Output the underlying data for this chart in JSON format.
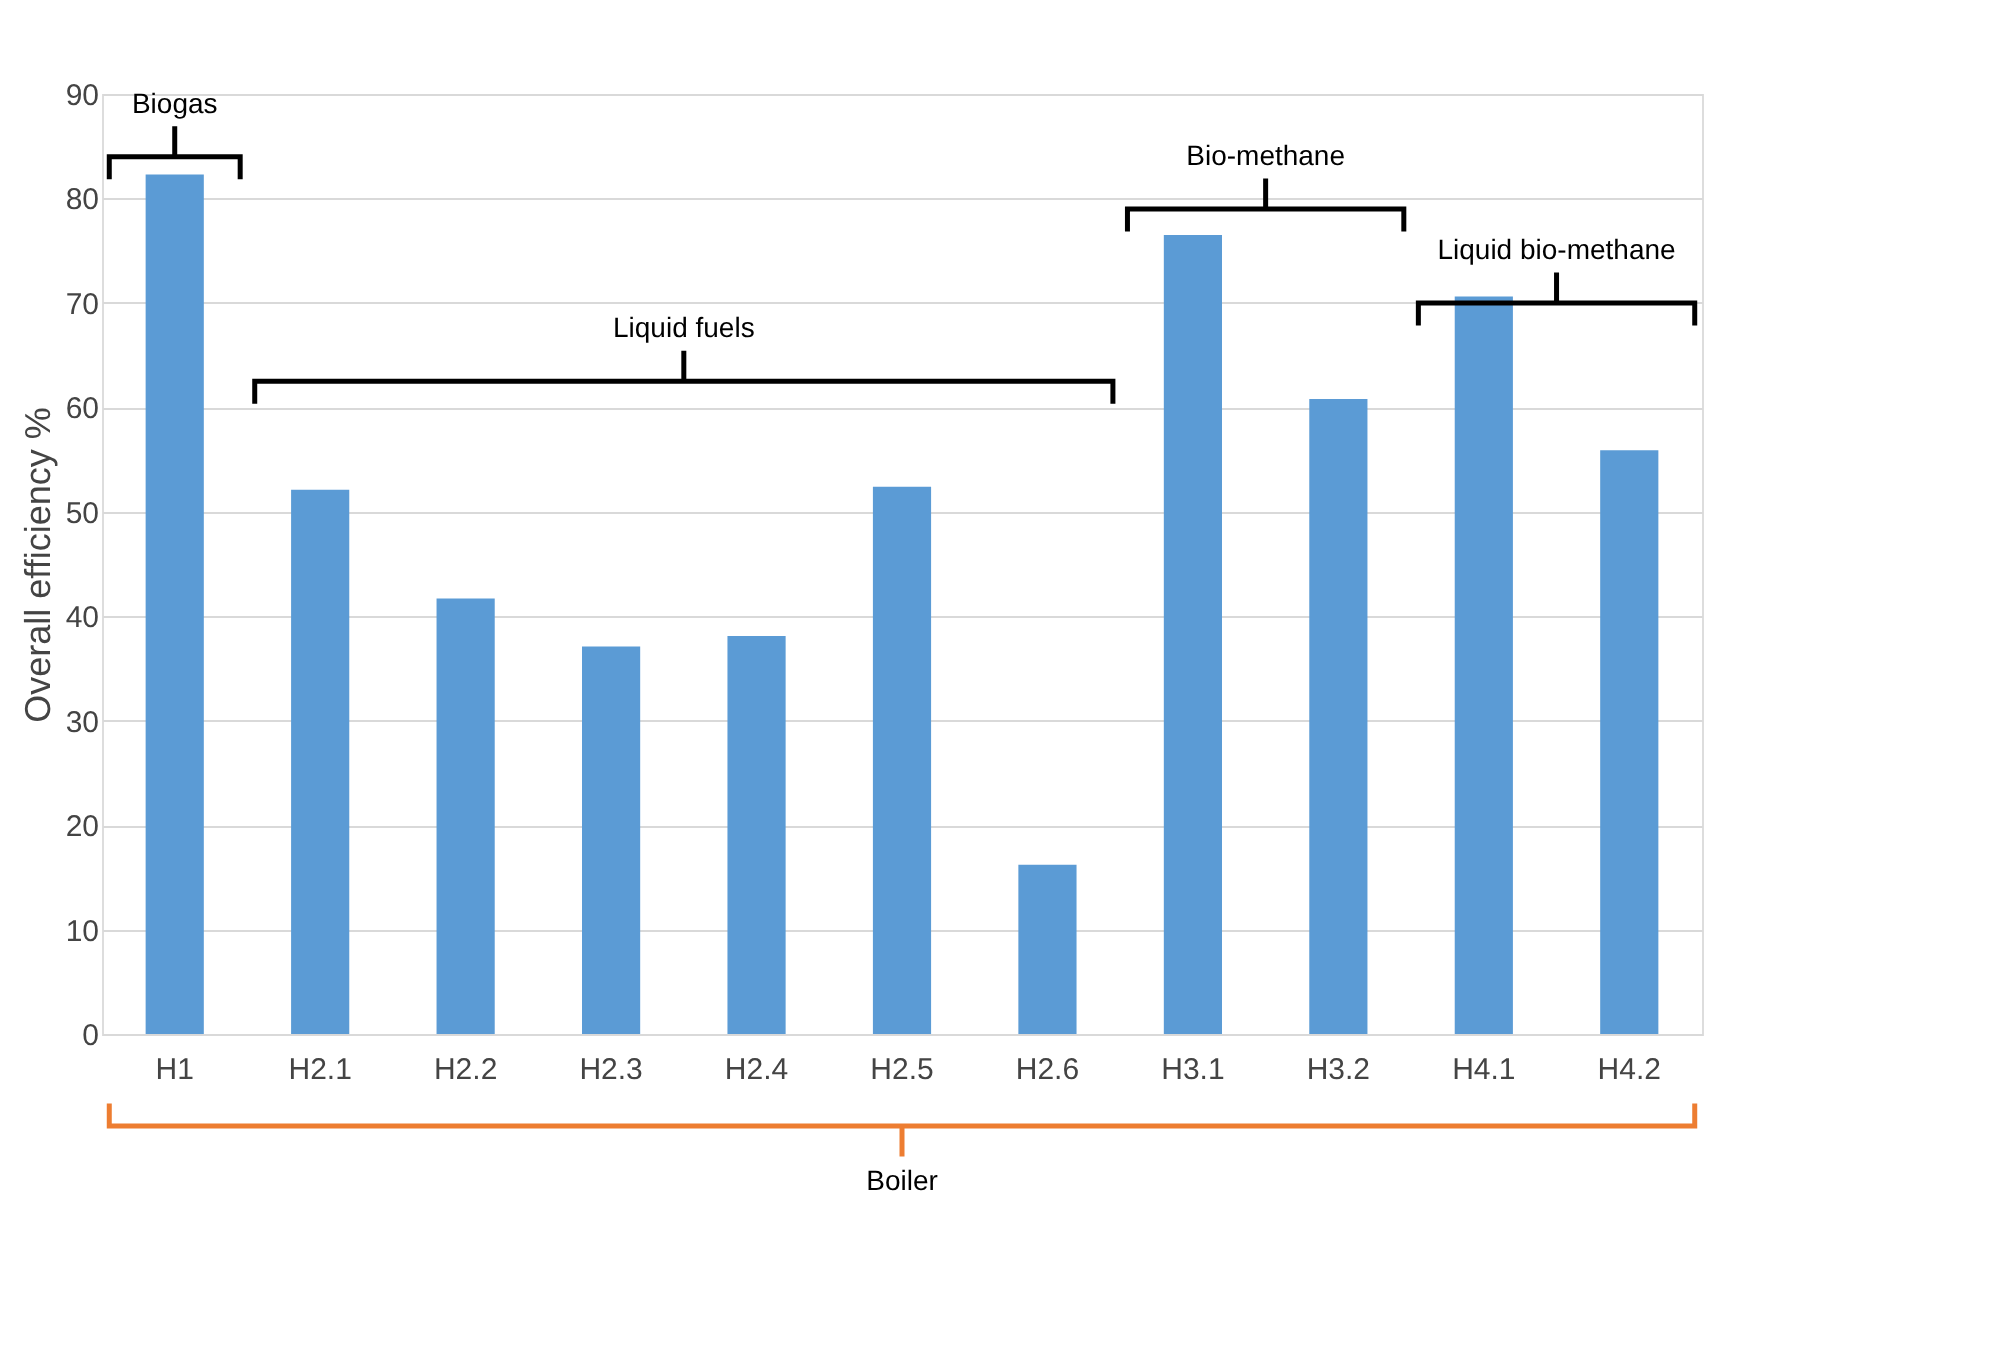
{
  "chart_data": {
    "type": "bar",
    "categories": [
      "H1",
      "H2.1",
      "H2.2",
      "H2.3",
      "H2.4",
      "H2.5",
      "H2.6",
      "H3.1",
      "H3.2",
      "H4.1",
      "H4.2"
    ],
    "values": [
      82.3,
      52.1,
      41.7,
      37.1,
      38.1,
      52.4,
      16.2,
      76.5,
      60.8,
      70.6,
      55.9
    ],
    "color": "#5b9bd5",
    "ylabel": "Overall efficiency %",
    "ylim": [
      0,
      90
    ],
    "yticks": [
      0,
      10,
      20,
      30,
      40,
      50,
      60,
      70,
      80,
      90
    ],
    "grid": "y",
    "annotations": [
      "Biogas",
      "Liquid fuels",
      "Bio-methane",
      "Liquid bio-methane",
      "Boiler"
    ]
  }
}
